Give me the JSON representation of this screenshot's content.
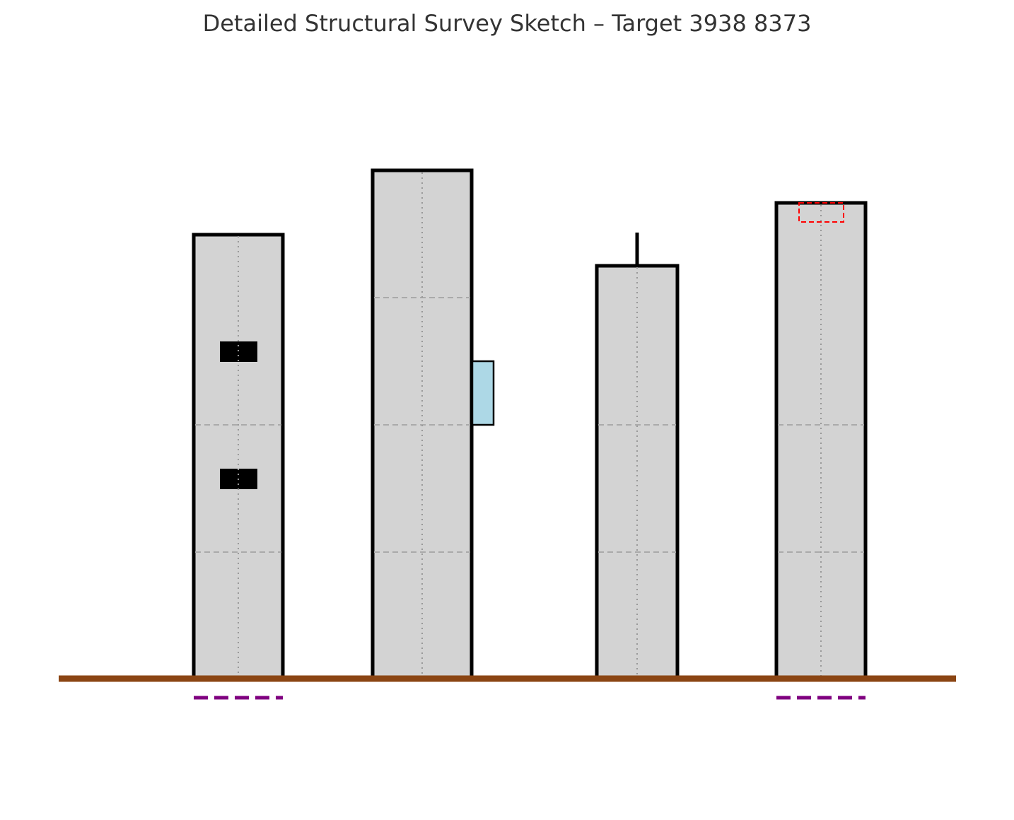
{
  "title": "Detailed Structural Survey Sketch – Target 3938 8373",
  "colors": {
    "building_fill": "#d3d3d3",
    "outline": "#000000",
    "ground": "#8b4513",
    "floor_line": "#aaaaaa",
    "center_line": "#999999",
    "annex_fill": "#add8e6",
    "roof_marker": "#ff0000",
    "foundation_marker": "#800080",
    "window_fill": "#000000"
  },
  "buildings": [
    {
      "id": "building-1",
      "features": [
        "window-upper",
        "window-lower",
        "foundation-marker"
      ]
    },
    {
      "id": "building-2",
      "features": [
        "side-annex"
      ]
    },
    {
      "id": "building-3",
      "features": [
        "roof-antenna"
      ]
    },
    {
      "id": "building-4",
      "features": [
        "roof-marker",
        "foundation-marker"
      ]
    }
  ]
}
